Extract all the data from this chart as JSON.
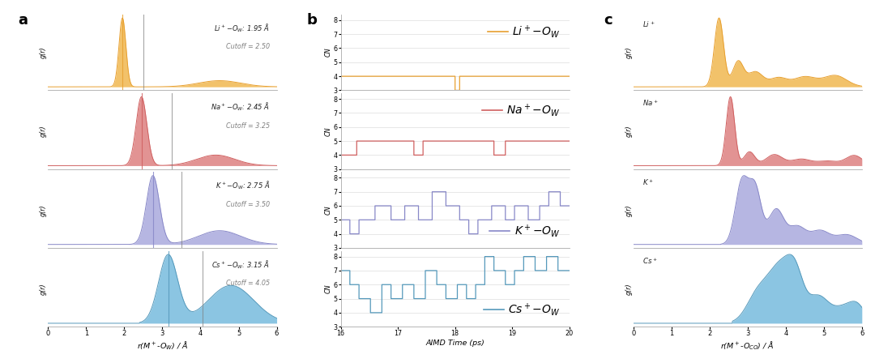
{
  "colors": {
    "Li": "#E8A030",
    "Na": "#D06060",
    "K": "#8888C8",
    "Cs": "#5599BB"
  },
  "colors_fill": {
    "Li": "#F0B850",
    "Na": "#DD8080",
    "K": "#AAAADD",
    "Cs": "#77BBDD"
  },
  "labels_a": {
    "Li": [
      "Li",
      "+",
      "O",
      "W",
      "1.95",
      "2.50",
      1.95,
      2.5
    ],
    "Na": [
      "Na",
      "+",
      "O",
      "W",
      "2.45",
      "3.25",
      2.45,
      3.25
    ],
    "K": [
      "K",
      "+",
      "O",
      "W",
      "2.75",
      "3.50",
      2.75,
      3.5
    ],
    "Cs": [
      "Cs",
      "+",
      "O",
      "W",
      "3.15",
      "4.05",
      3.15,
      4.05
    ]
  },
  "xlim_a": [
    0,
    6
  ],
  "xlim_b": [
    16,
    20
  ],
  "ylim_b": [
    3,
    8
  ],
  "xlim_c": [
    0,
    6
  ]
}
